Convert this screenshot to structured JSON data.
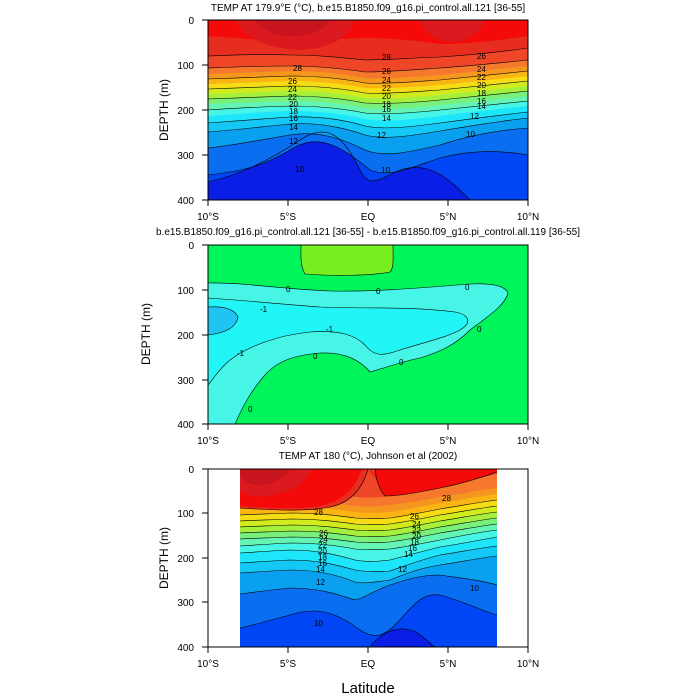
{
  "figure": {
    "xlabel": "Latitude"
  },
  "colors": {
    "scale": [
      "#0a1ee6",
      "#0046f5",
      "#0a6ef0",
      "#0aa0f0",
      "#14c8f5",
      "#1ee6fa",
      "#46f5e6",
      "#64f5b4",
      "#78f07a",
      "#a5f03c",
      "#d2eb1e",
      "#f5dc14",
      "#fab414",
      "#f5961e",
      "#f5782d",
      "#f0642d",
      "#f04628",
      "#e62d1e",
      "#dc191e",
      "#c8141e"
    ],
    "diff_zero": "#00f55a",
    "diff_pos": "#78ef1e",
    "diff_neg1": "#22f5f5",
    "diff_neg2": "#5ad8ea",
    "diff_neg3": "#20c4f2"
  },
  "chart_data": [
    {
      "type": "heatmap",
      "title": "TEMP AT 179.9°E (°C), b.e15.B1850.f09_g16.pi_control.all.121 [36-55]",
      "ylabel": "DEPTH (m)",
      "x_ticks": [
        "10°S",
        "5°S",
        "EQ",
        "5°N",
        "10°N"
      ],
      "y_ticks": [
        "0",
        "100",
        "200",
        "300",
        "400"
      ],
      "xlim": [
        -10,
        10
      ],
      "ylim": [
        0,
        400
      ],
      "contour_levels": [
        10,
        12,
        14,
        16,
        18,
        20,
        22,
        24,
        26,
        28
      ],
      "contour_labels": [
        "28",
        "26",
        "24",
        "22",
        "20",
        "18",
        "16",
        "14",
        "12",
        "10",
        "28",
        "26",
        "24",
        "22",
        "20",
        "18",
        "16",
        "14",
        "12",
        "10",
        "26",
        "24",
        "22",
        "20",
        "18",
        "16",
        "14",
        "12",
        "10"
      ],
      "isotherm_depths": {
        "lat": [
          -10,
          -7.5,
          -5,
          -2.5,
          0,
          2.5,
          5,
          7.5,
          10
        ],
        "T28": [
          85,
          90,
          97,
          102,
          102,
          98,
          92,
          85,
          80
        ],
        "T26": [
          110,
          115,
          120,
          123,
          122,
          118,
          110,
          102,
          95
        ],
        "T20": [
          150,
          155,
          160,
          162,
          160,
          154,
          147,
          140,
          132
        ],
        "T14": [
          210,
          208,
          208,
          212,
          215,
          205,
          195,
          185,
          178
        ],
        "T12": [
          240,
          235,
          232,
          240,
          255,
          235,
          222,
          212,
          205
        ],
        "T10": [
          340,
          300,
          282,
          300,
          340,
          320,
          282,
          258,
          250
        ]
      }
    },
    {
      "type": "heatmap",
      "title": "b.e15.B1850.f09_g16.pi_control.all.121 [36-55] - b.e15.B1850.f09_g16.pi_control.all.119 [36-55]",
      "ylabel": "DEPTH (m)",
      "x_ticks": [
        "10°S",
        "5°S",
        "EQ",
        "5°N",
        "10°N"
      ],
      "y_ticks": [
        "0",
        "100",
        "200",
        "300",
        "400"
      ],
      "xlim": [
        -10,
        10
      ],
      "ylim": [
        0,
        400
      ],
      "contour_labels": [
        "0",
        "0",
        "0",
        "-1",
        "-1",
        "-1",
        "0",
        "0",
        "0",
        "0"
      ],
      "regions": [
        {
          "name": "positive",
          "value": "0 to 1",
          "lat_range": [
            -4,
            1.5
          ],
          "depth_range": [
            0,
            60
          ]
        },
        {
          "name": "negative",
          "value": "-1 to 0",
          "lat_range": [
            -10,
            8.5
          ],
          "depth_range": [
            90,
            330
          ]
        },
        {
          "name": "negative-core",
          "value": "< -1",
          "lat_range": [
            -10,
            -6.5
          ],
          "depth_range": [
            145,
            205
          ]
        }
      ]
    },
    {
      "type": "heatmap",
      "title": "TEMP AT 180 (°C), Johnson et al (2002)",
      "ylabel": "DEPTH (m)",
      "x_ticks": [
        "10°S",
        "5°S",
        "EQ",
        "5°N",
        "10°N"
      ],
      "y_ticks": [
        "0",
        "100",
        "200",
        "300",
        "400"
      ],
      "xlim": [
        -10,
        10
      ],
      "ylim": [
        0,
        400
      ],
      "data_lat_range": [
        -8,
        8
      ],
      "contour_levels": [
        10,
        12,
        14,
        16,
        18,
        20,
        22,
        24,
        26,
        28
      ],
      "contour_labels": [
        "28",
        "28",
        "26",
        "24",
        "22",
        "20",
        "18",
        "16",
        "14",
        "12",
        "10",
        "26",
        "24",
        "22",
        "20",
        "18",
        "16",
        "14",
        "12",
        "10"
      ],
      "isotherm_depths": {
        "lat": [
          -8,
          -6,
          -4,
          -2,
          0,
          2,
          4,
          6,
          8
        ],
        "T28": [
          85,
          88,
          92,
          95,
          90,
          85,
          80,
          75,
          70
        ],
        "T26": [
          135,
          130,
          128,
          120,
          112,
          105,
          100,
          95,
          88
        ],
        "T20": [
          175,
          172,
          165,
          160,
          155,
          148,
          140,
          130,
          118
        ],
        "T14": [
          230,
          225,
          218,
          225,
          240,
          215,
          190,
          170,
          158
        ],
        "T12": [
          265,
          258,
          250,
          265,
          285,
          258,
          232,
          210,
          195
        ],
        "T10": [
          340,
          335,
          320,
          340,
          370,
          352,
          315,
          290,
          280
        ]
      }
    }
  ]
}
